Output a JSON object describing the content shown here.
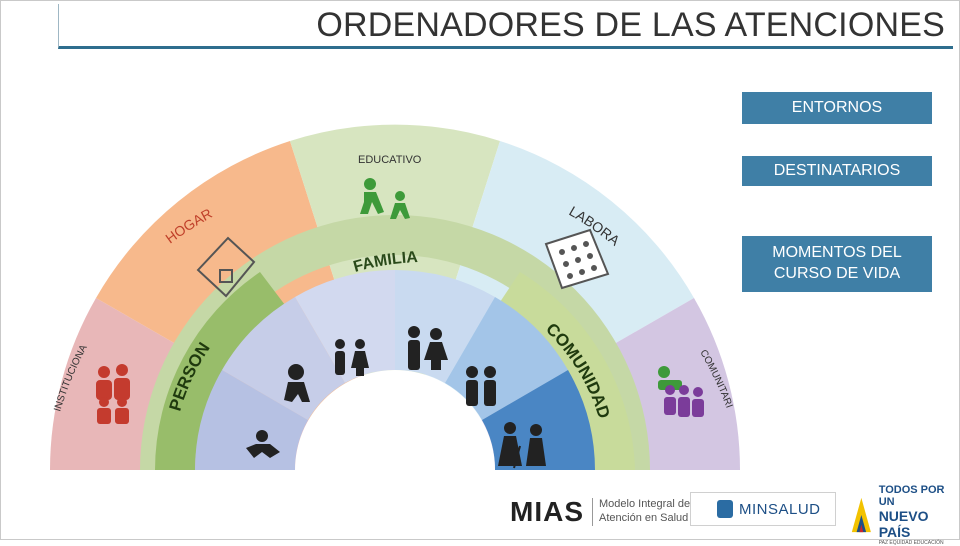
{
  "title": "ORDENADORES DE LAS ATENCIONES",
  "legend": {
    "entornos": "ENTORNOS",
    "destinatarios": "DESTINATARIOS",
    "momentos": "MOMENTOS DEL CURSO DE VIDA"
  },
  "entornos": {
    "educativo": "EDUCATIVO",
    "hogar": "HOGAR",
    "laboral": "LABORAL",
    "institucional": "INSTITUCIONAL",
    "comunitario": "COMUNITARIO"
  },
  "destinatarios": {
    "familia": "FAMILIA",
    "persona": "PERSONA",
    "comunidad": "COMUNIDAD"
  },
  "colors": {
    "hogar": "#f7b98c",
    "educativo": "#d7e5c0",
    "laboral": "#d8ecf4",
    "comunitario": "#d3c6e2",
    "institucional": "#e8b7b8",
    "familia_band": "#c5d8a6",
    "persona_band": "#98bd6a",
    "comunidad_band": "#c8db9b",
    "moment_1": "#b6c1e3",
    "moment_2": "#c6cde8",
    "moment_3": "#c9daf0",
    "moment_4": "#a3c5e8",
    "moment_5": "#4a86c4",
    "accent": "#3f7fa6"
  },
  "footer": {
    "mias": "MIAS",
    "mias_sub_1": "Modelo Integral de",
    "mias_sub_2": "Atención en Salud",
    "minsalud": "MINSALUD",
    "gov_1": "TODOS POR UN",
    "gov_2": "NUEVO PAÍS",
    "gov_3": "PAZ EQUIDAD EDUCACIÓN"
  }
}
